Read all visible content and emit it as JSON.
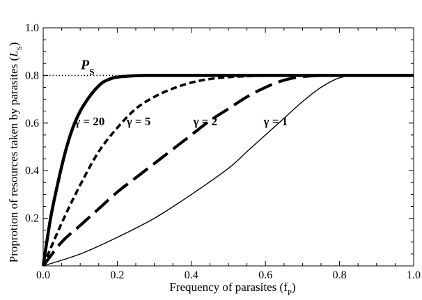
{
  "chart_data": {
    "type": "line",
    "xlabel": "Frequency of parasites (fP)",
    "ylabel": "Proprotion of resources taken by parasites (LS)",
    "xlim": [
      0,
      1
    ],
    "ylim": [
      0,
      1
    ],
    "xticks": [
      "0.0",
      "0.2",
      "0.4",
      "0.6",
      "0.8",
      "1.0"
    ],
    "yticks": [
      "0.2",
      "0.4",
      "0.6",
      "0.8",
      "1.0"
    ],
    "grid": false,
    "reference_line": {
      "label": "PS",
      "y": 0.8,
      "style": "dotted"
    },
    "series": [
      {
        "name": "γ = 20",
        "style": "thick-solid",
        "x": [
          0,
          0.02,
          0.04,
          0.06,
          0.08,
          0.1,
          0.12,
          0.14,
          0.16,
          0.18,
          0.2,
          0.25,
          0.3,
          0.4,
          0.6,
          0.8,
          1.0
        ],
        "y": [
          0,
          0.2,
          0.35,
          0.48,
          0.58,
          0.65,
          0.7,
          0.74,
          0.77,
          0.785,
          0.793,
          0.799,
          0.8,
          0.8,
          0.8,
          0.8,
          0.8
        ]
      },
      {
        "name": "γ = 5",
        "style": "short-dashed",
        "x": [
          0,
          0.05,
          0.1,
          0.15,
          0.2,
          0.25,
          0.3,
          0.35,
          0.4,
          0.45,
          0.5,
          0.55,
          0.6,
          0.7
        ],
        "y": [
          0,
          0.18,
          0.34,
          0.48,
          0.58,
          0.66,
          0.71,
          0.745,
          0.77,
          0.785,
          0.793,
          0.797,
          0.799,
          0.8
        ]
      },
      {
        "name": "γ = 2",
        "style": "long-dashed",
        "x": [
          0,
          0.05,
          0.1,
          0.15,
          0.2,
          0.25,
          0.3,
          0.35,
          0.4,
          0.45,
          0.5,
          0.55,
          0.6,
          0.65,
          0.7,
          0.75
        ],
        "y": [
          0,
          0.1,
          0.17,
          0.24,
          0.31,
          0.37,
          0.43,
          0.49,
          0.55,
          0.61,
          0.66,
          0.71,
          0.75,
          0.78,
          0.795,
          0.8
        ]
      },
      {
        "name": "γ = 1",
        "style": "thin-solid",
        "x": [
          0,
          0.1,
          0.2,
          0.3,
          0.4,
          0.5,
          0.55,
          0.6,
          0.65,
          0.7,
          0.75,
          0.8,
          0.85,
          1.0
        ],
        "y": [
          0,
          0.05,
          0.12,
          0.2,
          0.3,
          0.41,
          0.48,
          0.55,
          0.62,
          0.69,
          0.75,
          0.79,
          0.8,
          0.8
        ]
      }
    ]
  }
}
